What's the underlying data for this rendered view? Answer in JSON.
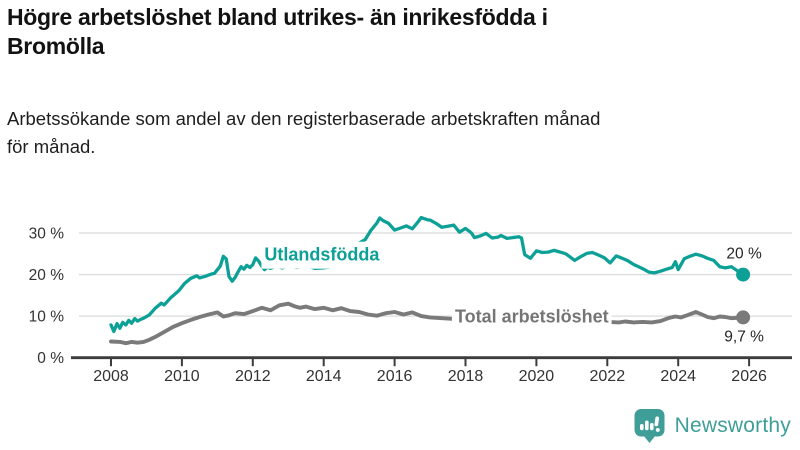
{
  "title_lines": [
    "Högre arbetslöshet bland utrikes- än inrikesfödda i",
    "Bromölla"
  ],
  "subtitle_lines": [
    "Arbetssökande som andel av den registerbaserade arbetskraften månad",
    "för månad."
  ],
  "branding": {
    "name": "Newsworthy",
    "logo_icon": "bar-chart-speech-bubble-icon"
  },
  "colors": {
    "accent_teal": "#0DA096",
    "series_gray": "#7A7A7A",
    "series_label_gray": "#757575",
    "grid": "#DBDBDB",
    "axis": "#3C3C3C",
    "tick_text": "#333333",
    "value_label_text": "#262626",
    "title_text": "#121212",
    "subtitle_text": "#1E1E1E",
    "logo_teal": "#3F9E98"
  },
  "chart_data": {
    "type": "line",
    "title": "Högre arbetslöshet bland utrikes- än inrikesfödda i Bromölla",
    "subtitle": "Arbetssökande som andel av den registerbaserade arbetskraften månad för månad.",
    "xlabel": "",
    "ylabel": "",
    "grid": "horizontal",
    "legend": "inline-labels",
    "xlim": [
      2007.9,
      2027.2
    ],
    "ylim": [
      0,
      36
    ],
    "x_axis": {
      "ticks": [
        {
          "value": 2008,
          "label": "2008"
        },
        {
          "value": 2010,
          "label": "2010"
        },
        {
          "value": 2012,
          "label": "2012"
        },
        {
          "value": 2014,
          "label": "2014"
        },
        {
          "value": 2016,
          "label": "2016"
        },
        {
          "value": 2018,
          "label": "2018"
        },
        {
          "value": 2020,
          "label": "2020"
        },
        {
          "value": 2022,
          "label": "2022"
        },
        {
          "value": 2024,
          "label": "2024"
        },
        {
          "value": 2026,
          "label": "2026"
        }
      ]
    },
    "y_axis": {
      "ticks": [
        {
          "value": 0,
          "label": "0 %"
        },
        {
          "value": 10,
          "label": "10 %"
        },
        {
          "value": 20,
          "label": "20 %"
        },
        {
          "value": 30,
          "label": "30 %"
        }
      ]
    },
    "series": [
      {
        "name": "Utlandsfödda",
        "color": "#0DA096",
        "label_color": "#0DA096",
        "label_at": [
          2013.95,
          24.9
        ],
        "end_label": "20 %",
        "end_value": 20,
        "points": [
          [
            2008.0,
            7.9
          ],
          [
            2008.08,
            6.3
          ],
          [
            2008.17,
            8.2
          ],
          [
            2008.25,
            7.1
          ],
          [
            2008.33,
            8.5
          ],
          [
            2008.42,
            7.9
          ],
          [
            2008.5,
            9.0
          ],
          [
            2008.58,
            8.3
          ],
          [
            2008.67,
            9.4
          ],
          [
            2008.75,
            8.8
          ],
          [
            2008.83,
            9.2
          ],
          [
            2008.92,
            9.5
          ],
          [
            2009.08,
            10.3
          ],
          [
            2009.25,
            11.9
          ],
          [
            2009.42,
            13.1
          ],
          [
            2009.5,
            12.7
          ],
          [
            2009.67,
            14.3
          ],
          [
            2009.83,
            15.5
          ],
          [
            2009.92,
            16.2
          ],
          [
            2010.08,
            17.9
          ],
          [
            2010.25,
            19.1
          ],
          [
            2010.42,
            19.7
          ],
          [
            2010.5,
            19.2
          ],
          [
            2010.67,
            19.6
          ],
          [
            2010.83,
            20.1
          ],
          [
            2010.92,
            20.3
          ],
          [
            2011.08,
            22.0
          ],
          [
            2011.17,
            24.4
          ],
          [
            2011.25,
            23.8
          ],
          [
            2011.33,
            19.5
          ],
          [
            2011.42,
            18.4
          ],
          [
            2011.5,
            19.3
          ],
          [
            2011.58,
            20.6
          ],
          [
            2011.67,
            21.9
          ],
          [
            2011.75,
            21.3
          ],
          [
            2011.83,
            22.2
          ],
          [
            2011.92,
            21.7
          ],
          [
            2012.0,
            22.4
          ],
          [
            2012.08,
            24.0
          ],
          [
            2012.17,
            23.2
          ],
          [
            2012.25,
            22.0
          ],
          [
            2012.33,
            21.2
          ],
          [
            2012.42,
            21.8
          ],
          [
            2012.5,
            21.5
          ],
          [
            2012.67,
            22.0
          ],
          [
            2012.83,
            21.6
          ],
          [
            2013.0,
            22.1
          ],
          [
            2013.25,
            21.7
          ],
          [
            2013.5,
            22.2
          ],
          [
            2013.75,
            21.5
          ],
          [
            2014.0,
            21.6
          ],
          [
            2014.17,
            21.8
          ],
          [
            2014.33,
            22.3
          ],
          [
            2014.5,
            23.2
          ],
          [
            2014.67,
            24.3
          ],
          [
            2014.83,
            25.7
          ],
          [
            2015.0,
            27.6
          ],
          [
            2015.17,
            28.4
          ],
          [
            2015.33,
            30.6
          ],
          [
            2015.5,
            32.4
          ],
          [
            2015.58,
            33.6
          ],
          [
            2015.67,
            33.0
          ],
          [
            2015.83,
            32.3
          ],
          [
            2016.0,
            30.7
          ],
          [
            2016.17,
            31.2
          ],
          [
            2016.33,
            31.7
          ],
          [
            2016.5,
            31.0
          ],
          [
            2016.67,
            32.8
          ],
          [
            2016.75,
            33.7
          ],
          [
            2016.92,
            33.2
          ],
          [
            2017.0,
            33.1
          ],
          [
            2017.17,
            32.3
          ],
          [
            2017.33,
            31.4
          ],
          [
            2017.5,
            31.6
          ],
          [
            2017.67,
            31.9
          ],
          [
            2017.83,
            30.2
          ],
          [
            2018.0,
            31.1
          ],
          [
            2018.17,
            30.0
          ],
          [
            2018.25,
            28.9
          ],
          [
            2018.42,
            29.3
          ],
          [
            2018.58,
            29.9
          ],
          [
            2018.75,
            28.8
          ],
          [
            2018.92,
            29.0
          ],
          [
            2019.0,
            29.4
          ],
          [
            2019.17,
            28.7
          ],
          [
            2019.33,
            28.9
          ],
          [
            2019.5,
            29.1
          ],
          [
            2019.58,
            28.8
          ],
          [
            2019.67,
            24.8
          ],
          [
            2019.83,
            23.9
          ],
          [
            2020.0,
            25.7
          ],
          [
            2020.17,
            25.3
          ],
          [
            2020.33,
            25.4
          ],
          [
            2020.5,
            25.8
          ],
          [
            2020.67,
            25.4
          ],
          [
            2020.83,
            25.0
          ],
          [
            2021.0,
            23.9
          ],
          [
            2021.08,
            23.4
          ],
          [
            2021.25,
            24.3
          ],
          [
            2021.42,
            25.1
          ],
          [
            2021.58,
            25.3
          ],
          [
            2021.75,
            24.7
          ],
          [
            2021.92,
            24.0
          ],
          [
            2022.0,
            23.4
          ],
          [
            2022.08,
            22.8
          ],
          [
            2022.25,
            24.5
          ],
          [
            2022.42,
            23.9
          ],
          [
            2022.58,
            23.3
          ],
          [
            2022.75,
            22.4
          ],
          [
            2023.0,
            21.4
          ],
          [
            2023.17,
            20.6
          ],
          [
            2023.33,
            20.4
          ],
          [
            2023.5,
            20.8
          ],
          [
            2023.67,
            21.3
          ],
          [
            2023.83,
            21.7
          ],
          [
            2023.92,
            23.1
          ],
          [
            2024.0,
            21.2
          ],
          [
            2024.17,
            23.8
          ],
          [
            2024.33,
            24.4
          ],
          [
            2024.5,
            24.9
          ],
          [
            2024.67,
            24.5
          ],
          [
            2024.83,
            23.9
          ],
          [
            2025.0,
            23.4
          ],
          [
            2025.17,
            21.9
          ],
          [
            2025.33,
            21.6
          ],
          [
            2025.5,
            21.9
          ],
          [
            2025.67,
            20.9
          ],
          [
            2025.83,
            20.0
          ]
        ]
      },
      {
        "name": "Total arbetslöshet",
        "color": "#7A7A7A",
        "label_color": "#757575",
        "label_at": [
          2019.87,
          10.0
        ],
        "end_label": "9,7 %",
        "end_value": 9.7,
        "points": [
          [
            2008.0,
            3.9
          ],
          [
            2008.25,
            3.8
          ],
          [
            2008.42,
            3.5
          ],
          [
            2008.58,
            3.8
          ],
          [
            2008.75,
            3.6
          ],
          [
            2008.92,
            3.8
          ],
          [
            2009.08,
            4.3
          ],
          [
            2009.25,
            5.0
          ],
          [
            2009.5,
            6.2
          ],
          [
            2009.75,
            7.4
          ],
          [
            2010.0,
            8.3
          ],
          [
            2010.25,
            9.1
          ],
          [
            2010.5,
            9.8
          ],
          [
            2010.75,
            10.4
          ],
          [
            2011.0,
            10.9
          ],
          [
            2011.17,
            9.9
          ],
          [
            2011.33,
            10.2
          ],
          [
            2011.5,
            10.7
          ],
          [
            2011.75,
            10.5
          ],
          [
            2012.0,
            11.2
          ],
          [
            2012.25,
            12.0
          ],
          [
            2012.5,
            11.4
          ],
          [
            2012.75,
            12.6
          ],
          [
            2013.0,
            13.0
          ],
          [
            2013.17,
            12.4
          ],
          [
            2013.33,
            12.0
          ],
          [
            2013.5,
            12.3
          ],
          [
            2013.75,
            11.7
          ],
          [
            2014.0,
            12.0
          ],
          [
            2014.25,
            11.4
          ],
          [
            2014.5,
            11.9
          ],
          [
            2014.75,
            11.2
          ],
          [
            2015.0,
            11.0
          ],
          [
            2015.25,
            10.4
          ],
          [
            2015.5,
            10.1
          ],
          [
            2015.75,
            10.7
          ],
          [
            2016.0,
            11.0
          ],
          [
            2016.25,
            10.4
          ],
          [
            2016.5,
            10.9
          ],
          [
            2016.75,
            10.0
          ],
          [
            2017.0,
            9.7
          ],
          [
            2017.5,
            9.4
          ],
          [
            2018.0,
            9.2
          ],
          [
            2018.5,
            9.0
          ],
          [
            2019.0,
            9.1
          ],
          [
            2019.5,
            8.9
          ],
          [
            2020.0,
            9.3
          ],
          [
            2020.5,
            9.1
          ],
          [
            2021.0,
            8.9
          ],
          [
            2021.5,
            8.7
          ],
          [
            2022.0,
            8.6
          ],
          [
            2022.33,
            8.5
          ],
          [
            2022.5,
            8.7
          ],
          [
            2022.75,
            8.5
          ],
          [
            2023.0,
            8.6
          ],
          [
            2023.25,
            8.5
          ],
          [
            2023.5,
            8.8
          ],
          [
            2023.75,
            9.6
          ],
          [
            2023.92,
            9.9
          ],
          [
            2024.08,
            9.7
          ],
          [
            2024.25,
            10.2
          ],
          [
            2024.5,
            11.0
          ],
          [
            2024.67,
            10.4
          ],
          [
            2024.83,
            9.8
          ],
          [
            2025.0,
            9.5
          ],
          [
            2025.17,
            9.9
          ],
          [
            2025.33,
            9.8
          ],
          [
            2025.5,
            9.5
          ],
          [
            2025.67,
            9.6
          ],
          [
            2025.83,
            9.7
          ]
        ]
      }
    ]
  }
}
